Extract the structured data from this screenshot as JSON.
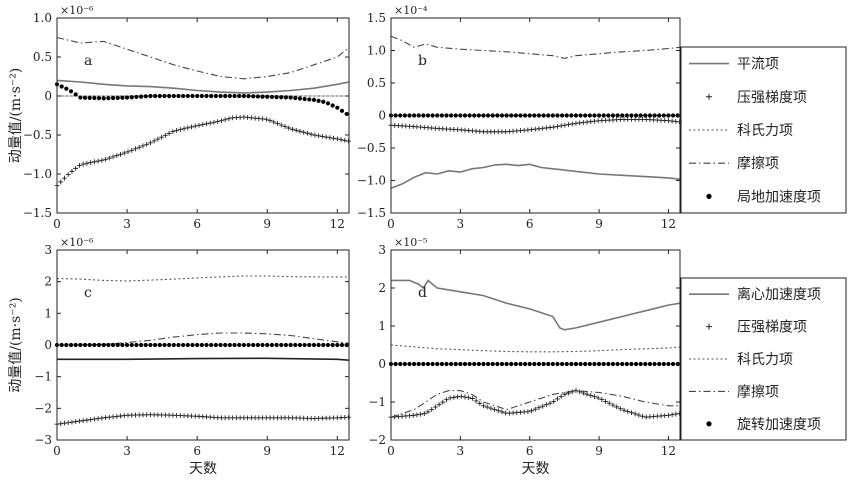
{
  "chart_data": [
    {
      "panel": "a",
      "type": "line",
      "multiplier": "×10⁻⁶",
      "ylabel": "动量值/(m·s⁻²)",
      "xlabel": "",
      "xlim": [
        0,
        12.5
      ],
      "ylim": [
        -1.5,
        1.0
      ],
      "xticks": [
        0,
        3,
        6,
        9,
        12
      ],
      "yticks": [
        1.0,
        0.5,
        0,
        -0.5,
        -1.0,
        -1.5
      ],
      "ytick_labels": [
        "1.0",
        "0.5",
        "0",
        "−0.5",
        "−1.0",
        "−1.5"
      ],
      "legend_position": "right",
      "series": [
        {
          "name": "平流项",
          "style": "solid",
          "color": "#777777",
          "x": [
            0,
            1,
            2,
            3,
            4,
            5,
            6,
            7,
            8,
            9,
            10,
            11,
            12,
            12.5
          ],
          "y": [
            0.2,
            0.18,
            0.15,
            0.13,
            0.12,
            0.1,
            0.07,
            0.05,
            0.04,
            0.05,
            0.07,
            0.1,
            0.15,
            0.18
          ]
        },
        {
          "name": "压强梯度项",
          "style": "plus",
          "color": "#222222",
          "x": [
            0,
            0.5,
            1,
            2,
            3,
            4,
            5,
            6,
            7,
            7.5,
            8,
            9,
            10,
            11,
            12,
            12.5
          ],
          "y": [
            -1.15,
            -1.0,
            -0.88,
            -0.82,
            -0.72,
            -0.6,
            -0.45,
            -0.38,
            -0.32,
            -0.28,
            -0.27,
            -0.3,
            -0.42,
            -0.5,
            -0.55,
            -0.58
          ]
        },
        {
          "name": "科氏力项",
          "style": "dotted",
          "color": "#555555",
          "x": [
            0,
            12.5
          ],
          "y": [
            0.0,
            0.0
          ]
        },
        {
          "name": "摩擦项",
          "style": "dashdot",
          "color": "#444444",
          "x": [
            0,
            1,
            2,
            3,
            4,
            5,
            6,
            7,
            8,
            9,
            10,
            11,
            12,
            12.5
          ],
          "y": [
            0.75,
            0.68,
            0.7,
            0.6,
            0.5,
            0.4,
            0.32,
            0.25,
            0.22,
            0.25,
            0.3,
            0.4,
            0.5,
            0.62
          ]
        },
        {
          "name": "局地加速度项",
          "style": "dots",
          "color": "#000000",
          "x": [
            0,
            0.5,
            1,
            2,
            3,
            4,
            5,
            6,
            7,
            8,
            9,
            10,
            11,
            11.5,
            12,
            12.5
          ],
          "y": [
            0.15,
            0.08,
            -0.02,
            -0.03,
            -0.02,
            0.0,
            0.0,
            0.0,
            0.0,
            0.0,
            -0.01,
            -0.02,
            -0.05,
            -0.08,
            -0.15,
            -0.25
          ]
        }
      ]
    },
    {
      "panel": "b",
      "type": "line",
      "multiplier": "×10⁻⁴",
      "ylabel": "",
      "xlabel": "",
      "xlim": [
        0,
        12.5
      ],
      "ylim": [
        -1.5,
        1.5
      ],
      "xticks": [
        0,
        3,
        6,
        9,
        12
      ],
      "yticks": [
        1.5,
        1.0,
        0.5,
        0,
        -0.5,
        -1.0,
        -1.5
      ],
      "ytick_labels": [
        "1.5",
        "1.0",
        "0.5",
        "0",
        "−0.5",
        "−1.0",
        "−1.5"
      ],
      "series": [
        {
          "name": "平流项",
          "style": "solid",
          "color": "#777777",
          "x": [
            0,
            0.5,
            1,
            1.5,
            2,
            2.5,
            3,
            3.5,
            4,
            4.5,
            5,
            5.5,
            6,
            6.5,
            7,
            7.5,
            8,
            9,
            10,
            11,
            12,
            12.5
          ],
          "y": [
            -1.12,
            -1.05,
            -0.95,
            -0.88,
            -0.9,
            -0.85,
            -0.87,
            -0.82,
            -0.8,
            -0.76,
            -0.75,
            -0.77,
            -0.75,
            -0.8,
            -0.82,
            -0.84,
            -0.86,
            -0.9,
            -0.92,
            -0.94,
            -0.96,
            -0.98
          ]
        },
        {
          "name": "压强梯度项",
          "style": "plus",
          "color": "#222222",
          "x": [
            0,
            1,
            2,
            3,
            4,
            5,
            6,
            7,
            8,
            9,
            10,
            11,
            12,
            12.5
          ],
          "y": [
            -0.15,
            -0.17,
            -0.2,
            -0.22,
            -0.25,
            -0.25,
            -0.22,
            -0.18,
            -0.12,
            -0.08,
            -0.06,
            -0.06,
            -0.08,
            -0.1
          ]
        },
        {
          "name": "科氏力项",
          "style": "dotted",
          "color": "#555555",
          "x": [
            0,
            12.5
          ],
          "y": [
            0.0,
            0.0
          ]
        },
        {
          "name": "摩擦项",
          "style": "dashdot",
          "color": "#444444",
          "x": [
            0,
            0.5,
            1,
            1.5,
            2,
            3,
            4,
            5,
            6,
            7,
            7.5,
            8,
            9,
            10,
            11,
            12,
            12.5
          ],
          "y": [
            1.22,
            1.15,
            1.05,
            1.1,
            1.05,
            1.02,
            1.0,
            0.98,
            0.95,
            0.92,
            0.88,
            0.92,
            0.95,
            0.98,
            1.0,
            1.03,
            1.05
          ]
        },
        {
          "name": "局地加速度项",
          "style": "dots",
          "color": "#000000",
          "x": [
            0,
            12.5
          ],
          "y": [
            0.0,
            0.0
          ]
        }
      ]
    },
    {
      "panel": "c",
      "type": "line",
      "multiplier": "×10⁻⁶",
      "ylabel": "动量值/(m·s⁻²)",
      "xlabel": "天数",
      "xlim": [
        0,
        12.5
      ],
      "ylim": [
        -3,
        3
      ],
      "xticks": [
        0,
        3,
        6,
        9,
        12
      ],
      "yticks": [
        3,
        2,
        1,
        0,
        -1,
        -2,
        -3
      ],
      "ytick_labels": [
        "3",
        "2",
        "1",
        "0",
        "−1",
        "−2",
        "−3"
      ],
      "series": [
        {
          "name": "平流项",
          "style": "solid",
          "color": "#222222",
          "x": [
            0,
            3,
            6,
            9,
            12,
            12.5
          ],
          "y": [
            -0.45,
            -0.45,
            -0.43,
            -0.42,
            -0.45,
            -0.48
          ]
        },
        {
          "name": "压强梯度项",
          "style": "plus",
          "color": "#222222",
          "x": [
            0,
            1,
            2,
            3,
            4,
            5,
            6,
            7,
            8,
            9,
            10,
            11,
            12,
            12.5
          ],
          "y": [
            -2.5,
            -2.4,
            -2.3,
            -2.22,
            -2.2,
            -2.22,
            -2.25,
            -2.3,
            -2.3,
            -2.3,
            -2.3,
            -2.32,
            -2.3,
            -2.28
          ]
        },
        {
          "name": "科氏力项",
          "style": "dotted",
          "color": "#555555",
          "x": [
            0,
            1,
            2,
            3,
            4,
            5,
            6,
            7,
            8,
            9,
            10,
            11,
            12,
            12.5
          ],
          "y": [
            2.1,
            2.08,
            2.04,
            2.02,
            2.05,
            2.08,
            2.12,
            2.15,
            2.18,
            2.18,
            2.16,
            2.15,
            2.15,
            2.15
          ]
        },
        {
          "name": "摩擦项",
          "style": "dashdot",
          "color": "#444444",
          "x": [
            0,
            1,
            2,
            3,
            4,
            5,
            6,
            7,
            8,
            9,
            10,
            11,
            12,
            12.5
          ],
          "y": [
            0.0,
            0.0,
            0.02,
            0.08,
            0.15,
            0.25,
            0.33,
            0.38,
            0.38,
            0.35,
            0.3,
            0.2,
            0.1,
            0.05
          ]
        },
        {
          "name": "局地加速度项",
          "style": "dots",
          "color": "#000000",
          "x": [
            0,
            12.5
          ],
          "y": [
            0.0,
            0.0
          ]
        }
      ]
    },
    {
      "panel": "d",
      "type": "line",
      "multiplier": "×10⁻⁵",
      "ylabel": "",
      "xlabel": "天数",
      "xlim": [
        0,
        12.5
      ],
      "ylim": [
        -2,
        3
      ],
      "xticks": [
        0,
        3,
        6,
        9,
        12
      ],
      "yticks": [
        3,
        2,
        1,
        0,
        -1,
        -2
      ],
      "ytick_labels": [
        "3",
        "2",
        "1",
        "0",
        "−1",
        "−2"
      ],
      "legend_position": "right",
      "series": [
        {
          "name": "离心加速度项",
          "style": "solid",
          "color": "#777777",
          "x": [
            0,
            0.8,
            1.2,
            1.4,
            1.6,
            2,
            2.5,
            3,
            4,
            5,
            6,
            7,
            7.3,
            7.5,
            8,
            9,
            10,
            11,
            12,
            12.5
          ],
          "y": [
            2.2,
            2.2,
            2.1,
            2.0,
            2.2,
            2.0,
            1.95,
            1.9,
            1.8,
            1.6,
            1.45,
            1.25,
            0.95,
            0.9,
            0.95,
            1.1,
            1.25,
            1.4,
            1.55,
            1.6
          ]
        },
        {
          "name": "压强梯度项",
          "style": "plus",
          "color": "#222222",
          "x": [
            0,
            1,
            1.5,
            2,
            2.5,
            3,
            3.5,
            4,
            5,
            6,
            7,
            7.5,
            8,
            9,
            10,
            11,
            12,
            12.5
          ],
          "y": [
            -1.4,
            -1.35,
            -1.3,
            -1.1,
            -0.9,
            -0.85,
            -0.9,
            -1.1,
            -1.3,
            -1.25,
            -1.0,
            -0.8,
            -0.7,
            -0.9,
            -1.2,
            -1.4,
            -1.35,
            -1.3
          ]
        },
        {
          "name": "科氏力项",
          "style": "dotted",
          "color": "#555555",
          "x": [
            0,
            1,
            2,
            3,
            4,
            5,
            6,
            7,
            8,
            9,
            10,
            11,
            12,
            12.5
          ],
          "y": [
            0.5,
            0.45,
            0.4,
            0.38,
            0.35,
            0.33,
            0.32,
            0.32,
            0.33,
            0.35,
            0.38,
            0.4,
            0.42,
            0.45
          ]
        },
        {
          "name": "摩擦项",
          "style": "dashdot",
          "color": "#444444",
          "x": [
            0,
            0.5,
            1,
            1.5,
            2,
            2.5,
            3,
            3.5,
            4,
            5,
            6,
            7,
            8,
            9,
            10,
            11,
            12,
            12.5
          ],
          "y": [
            -1.4,
            -1.3,
            -1.2,
            -1.0,
            -0.8,
            -0.7,
            -0.7,
            -0.8,
            -1.0,
            -1.2,
            -1.0,
            -0.8,
            -0.7,
            -0.75,
            -0.85,
            -1.0,
            -1.1,
            -1.1
          ]
        },
        {
          "name": "旋转加速度项",
          "style": "dots",
          "color": "#000000",
          "x": [
            0,
            12.5
          ],
          "y": [
            0.0,
            0.0
          ]
        }
      ]
    }
  ]
}
